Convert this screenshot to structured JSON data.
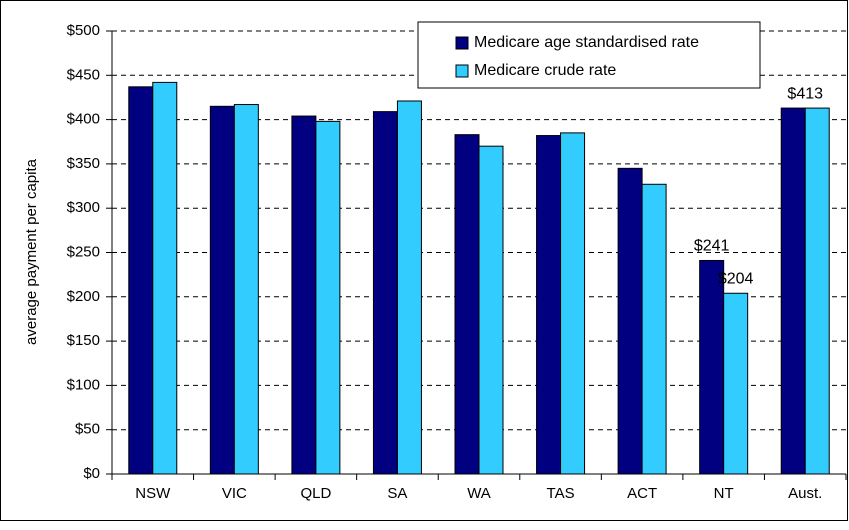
{
  "chart_data": {
    "type": "bar",
    "y_label": "average payment per capita",
    "categories": [
      "NSW",
      "VIC",
      "QLD",
      "SA",
      "WA",
      "TAS",
      "ACT",
      "NT",
      "Aust."
    ],
    "series": [
      {
        "name": "Medicare age standardised rate",
        "color": "#000080",
        "values": [
          437,
          415,
          404,
          409,
          383,
          382,
          345,
          241,
          413
        ],
        "value_labels": [
          null,
          null,
          null,
          null,
          null,
          null,
          null,
          "$241",
          "$413"
        ]
      },
      {
        "name": "Medicare crude rate",
        "color": "#33ccff",
        "values": [
          442,
          417,
          398,
          421,
          370,
          385,
          327,
          204,
          413
        ],
        "value_labels": [
          null,
          null,
          null,
          null,
          null,
          null,
          null,
          "$204",
          null
        ]
      }
    ],
    "ylim": [
      0,
      500
    ],
    "yticks": [
      {
        "value": 0,
        "label": "$0"
      },
      {
        "value": 50,
        "label": "$50"
      },
      {
        "value": 100,
        "label": "$100"
      },
      {
        "value": 150,
        "label": "$150"
      },
      {
        "value": 200,
        "label": "$200"
      },
      {
        "value": 250,
        "label": "$250"
      },
      {
        "value": 300,
        "label": "$300"
      },
      {
        "value": 350,
        "label": "$350"
      },
      {
        "value": 400,
        "label": "$400"
      },
      {
        "value": 450,
        "label": "$450"
      },
      {
        "value": 500,
        "label": "$500"
      }
    ],
    "grid": true,
    "legend": "top-right"
  }
}
